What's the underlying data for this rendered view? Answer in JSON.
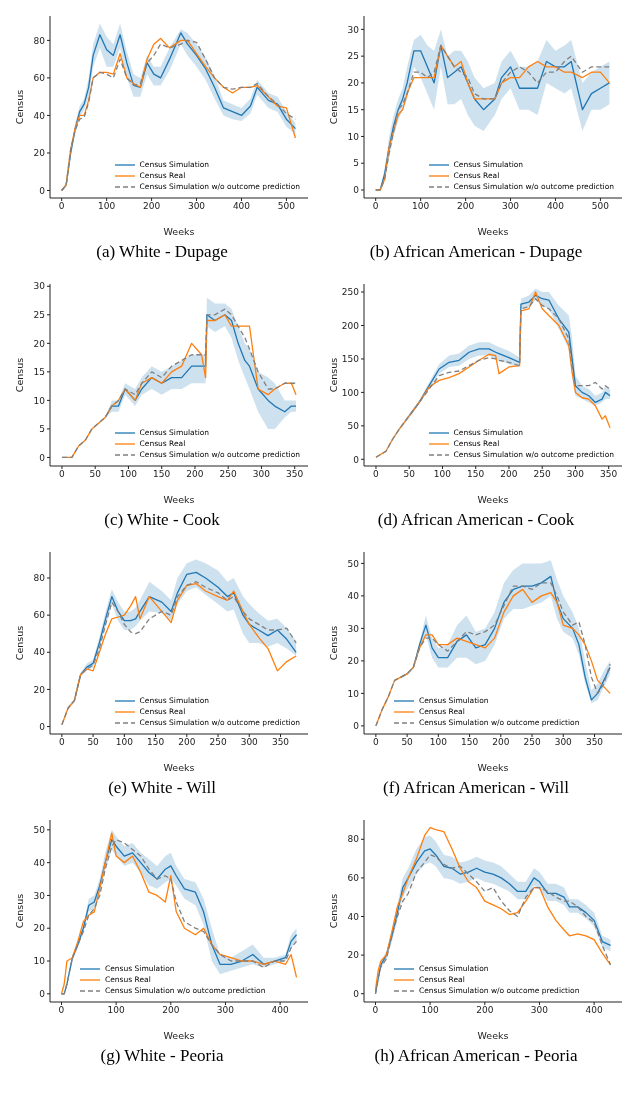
{
  "chart_data": [
    {
      "type": "line",
      "title": "(a) White - Dupage",
      "xlabel": "Weeks",
      "ylabel": "Census",
      "legend": "bottom right",
      "xlim": [
        -26,
        548
      ],
      "xticks": [
        0,
        100,
        200,
        300,
        400,
        500
      ],
      "ylim": [
        -4,
        93
      ],
      "yticks": [
        0,
        20,
        40,
        60,
        80
      ],
      "x": [
        0,
        10,
        20,
        30,
        40,
        50,
        60,
        70,
        85,
        100,
        115,
        130,
        145,
        160,
        175,
        190,
        205,
        220,
        240,
        265,
        280,
        300,
        320,
        340,
        360,
        380,
        400,
        420,
        435,
        460,
        480,
        500,
        520
      ],
      "series": [
        {
          "name": "Census Simulation",
          "color": "#1f77b4",
          "line_style": "solid",
          "values": [
            0,
            3,
            20,
            33,
            42,
            46,
            55,
            72,
            83,
            75,
            72,
            83,
            68,
            56,
            55,
            68,
            62,
            60,
            70,
            84,
            78,
            72,
            65,
            55,
            44,
            42,
            40,
            45,
            55,
            48,
            46,
            38,
            33
          ],
          "lower": [
            0,
            2,
            18,
            30,
            39,
            43,
            50,
            66,
            76,
            66,
            66,
            76,
            60,
            50,
            50,
            62,
            56,
            56,
            64,
            78,
            72,
            66,
            59,
            49,
            40,
            38,
            37,
            41,
            51,
            44,
            42,
            34,
            30
          ],
          "upper": [
            0,
            4,
            22,
            36,
            45,
            49,
            60,
            78,
            89,
            82,
            78,
            89,
            74,
            62,
            60,
            72,
            66,
            66,
            76,
            86,
            84,
            78,
            71,
            61,
            48,
            46,
            44,
            49,
            59,
            52,
            50,
            42,
            36
          ]
        },
        {
          "name": "Census Real",
          "color": "#ff7f0e",
          "line_style": "solid",
          "values": [
            0,
            3,
            22,
            33,
            40,
            40,
            48,
            60,
            63,
            63,
            62,
            73,
            60,
            57,
            55,
            70,
            78,
            81,
            76,
            80,
            80,
            73,
            66,
            60,
            55,
            52,
            55,
            55,
            56,
            50,
            45,
            44,
            28
          ]
        },
        {
          "name": "Census Simulation w/o outcome prediction",
          "color": "#808080",
          "line_style": "dashed",
          "values": [
            0,
            3,
            22,
            32,
            38,
            39,
            47,
            60,
            63,
            62,
            60,
            70,
            60,
            56,
            57,
            68,
            72,
            78,
            76,
            78,
            80,
            79,
            70,
            60,
            55,
            54,
            55,
            55,
            57,
            50,
            46,
            41,
            38
          ]
        }
      ]
    },
    {
      "type": "line",
      "title": "(b) African American - Dupage",
      "xlabel": "Weeks",
      "ylabel": "Census",
      "legend": "bottom right",
      "xlim": [
        -26,
        548
      ],
      "xticks": [
        0,
        100,
        200,
        300,
        400,
        500
      ],
      "ylim": [
        -1.5,
        32.5
      ],
      "yticks": [
        0,
        5,
        10,
        15,
        20,
        25,
        30
      ],
      "x": [
        0,
        10,
        20,
        30,
        40,
        50,
        60,
        70,
        85,
        100,
        115,
        130,
        145,
        160,
        175,
        190,
        205,
        220,
        240,
        265,
        280,
        300,
        320,
        340,
        360,
        380,
        400,
        420,
        435,
        460,
        480,
        500,
        520
      ],
      "series": [
        {
          "name": "Census Simulation",
          "color": "#1f77b4",
          "line_style": "solid",
          "values": [
            0,
            0,
            3,
            8,
            12,
            15,
            17,
            20,
            26,
            26,
            23,
            20,
            27,
            21,
            22,
            23,
            20,
            17,
            15,
            17,
            21,
            23,
            19,
            19,
            19,
            24,
            23,
            23,
            24,
            15,
            18,
            19,
            20
          ],
          "lower": [
            0,
            0,
            2,
            6,
            10,
            13,
            15,
            17,
            23,
            21,
            18,
            15,
            23,
            16,
            16,
            17,
            14,
            12,
            11,
            14,
            17,
            19,
            15,
            15,
            14,
            20,
            19,
            18,
            19,
            11,
            15,
            15,
            16
          ],
          "upper": [
            0,
            0,
            4,
            10,
            14,
            17,
            19,
            23,
            28,
            29,
            27,
            26,
            30,
            25,
            26,
            26,
            24,
            21,
            19,
            20,
            24,
            26,
            23,
            23,
            24,
            28,
            26,
            27,
            28,
            20,
            22,
            23,
            24
          ]
        },
        {
          "name": "Census Real",
          "color": "#ff7f0e",
          "line_style": "solid",
          "values": [
            0,
            0,
            2,
            8,
            11,
            14,
            15,
            18,
            21,
            21,
            21,
            21,
            27,
            25,
            23,
            24,
            20,
            17,
            17,
            17,
            20,
            21,
            21,
            23,
            24,
            23,
            23,
            22,
            22,
            21,
            22,
            22,
            20
          ]
        },
        {
          "name": "Census Simulation w/o outcome prediction",
          "color": "#808080",
          "line_style": "dashed",
          "values": [
            0,
            0,
            2,
            7,
            11,
            15,
            16,
            18,
            22,
            22,
            21,
            22,
            27,
            25,
            23,
            22,
            21,
            18,
            17,
            17,
            20,
            22,
            23,
            22,
            20,
            22,
            22,
            24,
            25,
            22,
            23,
            23,
            23
          ]
        }
      ]
    },
    {
      "type": "line",
      "title": "(c) White - Cook",
      "xlabel": "Weeks",
      "ylabel": "Census",
      "legend": "bottom right",
      "xlim": [
        -18,
        370
      ],
      "xticks": [
        0,
        50,
        100,
        150,
        200,
        250,
        300,
        350
      ],
      "ylim": [
        -1.5,
        30.4
      ],
      "yticks": [
        0,
        5,
        10,
        15,
        20,
        25,
        30
      ],
      "x": [
        0,
        15,
        25,
        35,
        45,
        55,
        65,
        75,
        85,
        95,
        110,
        120,
        135,
        150,
        165,
        180,
        195,
        210,
        216,
        218,
        230,
        245,
        255,
        265,
        275,
        282,
        295,
        310,
        320,
        335,
        345,
        352
      ],
      "series": [
        {
          "name": "Census Simulation",
          "color": "#1f77b4",
          "line_style": "solid",
          "values": [
            null,
            null,
            null,
            null,
            null,
            null,
            7,
            9,
            9,
            12,
            10,
            12,
            14,
            13,
            14,
            14,
            16,
            16,
            16,
            25,
            24,
            25,
            24,
            20,
            17,
            16,
            12,
            10,
            9,
            8,
            9,
            9
          ],
          "lower": [
            0,
            0,
            2,
            3,
            5,
            6,
            7,
            8,
            8,
            11,
            9,
            11,
            12,
            11,
            12,
            12,
            13,
            13,
            13,
            23,
            22,
            23,
            21,
            17,
            14,
            12,
            8,
            5,
            5,
            7,
            8,
            8
          ],
          "upper": [
            0,
            0,
            2,
            3,
            5,
            6,
            7,
            10,
            10,
            13,
            12,
            14,
            16,
            15,
            16,
            17,
            18,
            18,
            18,
            28,
            27,
            27,
            26,
            23,
            20,
            19,
            15,
            14,
            13,
            10,
            10,
            10
          ]
        },
        {
          "name": "Census Real",
          "color": "#ff7f0e",
          "line_style": "solid",
          "values": [
            0,
            0,
            2,
            3,
            5,
            6,
            7,
            9,
            10,
            12,
            10,
            13,
            14,
            13,
            15,
            16,
            20,
            18,
            14,
            24,
            24,
            25,
            23,
            23,
            23,
            23,
            12,
            11,
            12,
            13,
            13,
            11
          ]
        },
        {
          "name": "Census Simulation w/o outcome prediction",
          "color": "#808080",
          "line_style": "dashed",
          "values": [
            0,
            0,
            2,
            3,
            5,
            6,
            7,
            9,
            10,
            12,
            11,
            13,
            15,
            14,
            16,
            17,
            18,
            18,
            18,
            25,
            25,
            26,
            25,
            23,
            21,
            19,
            15,
            12,
            12,
            13,
            13,
            13
          ]
        }
      ]
    },
    {
      "type": "line",
      "title": "(d) African American - Cook",
      "xlabel": "Weeks",
      "ylabel": "Census",
      "legend": "bottom right",
      "xlim": [
        -18,
        370
      ],
      "xticks": [
        0,
        50,
        100,
        150,
        200,
        250,
        300,
        350
      ],
      "ylim": [
        -10,
        262
      ],
      "yticks": [
        0,
        50,
        100,
        150,
        200,
        250
      ],
      "x": [
        0,
        15,
        25,
        35,
        50,
        65,
        80,
        95,
        110,
        125,
        140,
        155,
        170,
        180,
        185,
        200,
        216,
        218,
        230,
        240,
        250,
        260,
        275,
        290,
        295,
        300,
        310,
        320,
        330,
        340,
        345,
        352
      ],
      "series": [
        {
          "name": "Census Simulation",
          "color": "#1f77b4",
          "line_style": "solid",
          "values": [
            null,
            null,
            null,
            null,
            65,
            85,
            110,
            135,
            145,
            148,
            160,
            165,
            165,
            160,
            158,
            152,
            145,
            232,
            235,
            245,
            240,
            238,
            210,
            190,
            150,
            110,
            100,
            95,
            85,
            90,
            100,
            95
          ],
          "lower": [
            3,
            11,
            28,
            43,
            62,
            82,
            105,
            128,
            138,
            140,
            150,
            155,
            155,
            150,
            148,
            142,
            138,
            225,
            228,
            238,
            230,
            225,
            195,
            165,
            125,
            95,
            90,
            85,
            80,
            85,
            90,
            90
          ],
          "upper": [
            3,
            13,
            32,
            47,
            68,
            88,
            115,
            142,
            155,
            158,
            170,
            175,
            175,
            170,
            168,
            162,
            152,
            240,
            245,
            255,
            250,
            250,
            230,
            215,
            180,
            125,
            110,
            105,
            95,
            100,
            110,
            105
          ]
        },
        {
          "name": "Census Real",
          "color": "#ff7f0e",
          "line_style": "solid",
          "values": [
            3,
            12,
            30,
            45,
            65,
            85,
            108,
            118,
            122,
            128,
            138,
            148,
            157,
            155,
            128,
            138,
            140,
            222,
            225,
            250,
            225,
            215,
            200,
            170,
            130,
            100,
            92,
            90,
            80,
            60,
            65,
            47
          ]
        },
        {
          "name": "Census Simulation w/o outcome prediction",
          "color": "#808080",
          "line_style": "dashed",
          "values": [
            3,
            12,
            30,
            45,
            65,
            85,
            105,
            125,
            130,
            132,
            140,
            148,
            152,
            150,
            148,
            145,
            140,
            225,
            228,
            240,
            230,
            225,
            210,
            180,
            140,
            110,
            110,
            110,
            115,
            105,
            110,
            105
          ]
        }
      ]
    },
    {
      "type": "line",
      "title": "(e) White - Will",
      "xlabel": "Weeks",
      "ylabel": "Census",
      "legend": "bottom right",
      "xlim": [
        -19,
        394
      ],
      "xticks": [
        0,
        50,
        100,
        150,
        200,
        250,
        300,
        350
      ],
      "ylim": [
        -4,
        94
      ],
      "yticks": [
        0,
        20,
        40,
        60,
        80
      ],
      "x": [
        0,
        10,
        20,
        30,
        40,
        50,
        60,
        70,
        80,
        90,
        100,
        110,
        118,
        125,
        140,
        160,
        175,
        185,
        200,
        215,
        230,
        250,
        265,
        275,
        290,
        300,
        315,
        330,
        345,
        360,
        375
      ],
      "series": [
        {
          "name": "Census Simulation",
          "color": "#1f77b4",
          "line_style": "solid",
          "values": [
            null,
            null,
            14,
            28,
            32,
            34,
            45,
            58,
            70,
            62,
            57,
            57,
            58,
            62,
            70,
            67,
            62,
            72,
            82,
            83,
            80,
            75,
            70,
            72,
            60,
            55,
            52,
            49,
            52,
            47,
            40
          ],
          "lower": [
            1,
            9,
            13,
            27,
            30,
            32,
            42,
            54,
            66,
            57,
            52,
            52,
            54,
            57,
            62,
            61,
            57,
            66,
            73,
            75,
            71,
            66,
            62,
            63,
            50,
            45,
            45,
            43,
            45,
            42,
            38
          ],
          "upper": [
            1,
            11,
            15,
            29,
            34,
            36,
            48,
            62,
            74,
            67,
            62,
            62,
            64,
            68,
            78,
            73,
            68,
            80,
            88,
            90,
            88,
            84,
            78,
            80,
            70,
            66,
            61,
            57,
            58,
            53,
            46
          ]
        },
        {
          "name": "Census Real",
          "color": "#ff7f0e",
          "line_style": "solid",
          "values": [
            1,
            10,
            14,
            28,
            31,
            30,
            40,
            50,
            58,
            59,
            60,
            65,
            70,
            58,
            70,
            62,
            56,
            68,
            76,
            77,
            73,
            70,
            68,
            73,
            62,
            55,
            48,
            42,
            30,
            35,
            38
          ]
        },
        {
          "name": "Census Simulation w/o outcome prediction",
          "color": "#808080",
          "line_style": "dashed",
          "values": [
            1,
            10,
            14,
            28,
            31,
            33,
            42,
            55,
            67,
            62,
            55,
            51,
            50,
            51,
            58,
            62,
            60,
            70,
            76,
            78,
            75,
            72,
            68,
            70,
            62,
            58,
            55,
            52,
            52,
            53,
            45
          ]
        }
      ]
    },
    {
      "type": "line",
      "title": "(f) African American - Will",
      "xlabel": "Weeks",
      "ylabel": "Census",
      "legend": "bottom",
      "xlim": [
        -19,
        394
      ],
      "xticks": [
        0,
        50,
        100,
        150,
        200,
        250,
        300,
        350
      ],
      "ylim": [
        -2.5,
        53.5
      ],
      "yticks": [
        0,
        10,
        20,
        30,
        40,
        50
      ],
      "x": [
        0,
        10,
        20,
        30,
        40,
        50,
        60,
        70,
        80,
        90,
        100,
        115,
        130,
        145,
        160,
        175,
        190,
        205,
        220,
        235,
        250,
        265,
        280,
        290,
        300,
        315,
        325,
        335,
        345,
        355,
        365,
        375
      ],
      "series": [
        {
          "name": "Census Simulation",
          "color": "#1f77b4",
          "line_style": "solid",
          "values": [
            null,
            null,
            null,
            null,
            15,
            16,
            18,
            25,
            31,
            24,
            21,
            21,
            26,
            28,
            24,
            25,
            30,
            38,
            42,
            43,
            43,
            44,
            46,
            38,
            33,
            30,
            25,
            15,
            8,
            10,
            14,
            18
          ],
          "lower": [
            0,
            5,
            9,
            14,
            15,
            16,
            18,
            24,
            28,
            21,
            18,
            18,
            21,
            21,
            19,
            20,
            25,
            33,
            36,
            36,
            37,
            38,
            40,
            33,
            29,
            27,
            22,
            13,
            7,
            8,
            12,
            16
          ],
          "upper": [
            0,
            5,
            9,
            14,
            15,
            16,
            18,
            26,
            34,
            27,
            24,
            25,
            31,
            34,
            29,
            30,
            35,
            44,
            48,
            50,
            50,
            50,
            51,
            45,
            40,
            35,
            30,
            20,
            11,
            13,
            17,
            20
          ]
        },
        {
          "name": "Census Real",
          "color": "#ff7f0e",
          "line_style": "solid",
          "values": [
            0,
            5,
            9,
            14,
            15,
            16,
            18,
            24,
            28,
            28,
            25,
            25,
            27,
            26,
            25,
            24,
            27,
            35,
            40,
            42,
            38,
            40,
            41,
            38,
            31,
            30,
            28,
            25,
            20,
            14,
            12,
            10
          ]
        },
        {
          "name": "Census Simulation w/o outcome prediction",
          "color": "#808080",
          "line_style": "dashed",
          "values": [
            0,
            5,
            9,
            14,
            15,
            16,
            18,
            24,
            27,
            27,
            25,
            23,
            26,
            29,
            28,
            29,
            31,
            37,
            43,
            43,
            42,
            44,
            44,
            40,
            35,
            31,
            32,
            25,
            15,
            10,
            13,
            19
          ]
        }
      ]
    },
    {
      "type": "line",
      "title": "(g) White - Peoria",
      "xlabel": "Weeks",
      "ylabel": "Census",
      "legend": "bottom",
      "xlim": [
        -21,
        451
      ],
      "xticks": [
        0,
        100,
        200,
        300,
        400
      ],
      "ylim": [
        -2.5,
        53
      ],
      "yticks": [
        0,
        10,
        20,
        30,
        40,
        50
      ],
      "x": [
        0,
        5,
        10,
        20,
        30,
        40,
        50,
        60,
        70,
        80,
        92,
        100,
        115,
        130,
        145,
        160,
        175,
        190,
        200,
        210,
        225,
        245,
        260,
        275,
        290,
        310,
        330,
        350,
        370,
        390,
        410,
        420,
        430
      ],
      "series": [
        {
          "name": "Census Simulation",
          "color": "#1f77b4",
          "line_style": "solid",
          "values": [
            0,
            0,
            3,
            11,
            15,
            20,
            27,
            28,
            33,
            40,
            47,
            45,
            42,
            43,
            40,
            37,
            35,
            38,
            39,
            36,
            32,
            31,
            25,
            15,
            9,
            9,
            10,
            12,
            9,
            10,
            11,
            16,
            18
          ],
          "lower": [
            0,
            0,
            3,
            10,
            14,
            19,
            25,
            26,
            31,
            38,
            44,
            42,
            39,
            40,
            37,
            33,
            32,
            34,
            35,
            33,
            29,
            27,
            21,
            10,
            6,
            7,
            8,
            9,
            8,
            9,
            10,
            14,
            16
          ],
          "upper": [
            0,
            0,
            3,
            12,
            16,
            21,
            29,
            30,
            35,
            43,
            50,
            48,
            45,
            46,
            43,
            41,
            39,
            42,
            43,
            39,
            35,
            34,
            29,
            20,
            12,
            11,
            13,
            15,
            11,
            11,
            12,
            18,
            20
          ]
        },
        {
          "name": "Census Real",
          "color": "#ff7f0e",
          "line_style": "solid",
          "values": [
            0,
            3,
            10,
            11,
            16,
            22,
            24,
            25,
            32,
            40,
            49,
            42,
            40,
            42,
            37,
            31,
            30,
            28,
            36,
            25,
            20,
            18,
            20,
            15,
            12,
            11,
            10,
            10,
            9,
            10,
            9,
            12,
            5
          ]
        },
        {
          "name": "Census Simulation w/o outcome prediction",
          "color": "#808080",
          "line_style": "dashed",
          "values": [
            0,
            0,
            3,
            11,
            15,
            19,
            24,
            26,
            30,
            38,
            45,
            47,
            46,
            44,
            42,
            38,
            35,
            36,
            35,
            28,
            22,
            20,
            19,
            15,
            12,
            10,
            10,
            10,
            8,
            10,
            10,
            14,
            16
          ]
        }
      ]
    },
    {
      "type": "line",
      "title": "(h) African American - Peoria",
      "xlabel": "Weeks",
      "ylabel": "Census",
      "legend": "bottom",
      "xlim": [
        -21,
        451
      ],
      "xticks": [
        0,
        100,
        200,
        300,
        400
      ],
      "ylim": [
        -4.3,
        90
      ],
      "yticks": [
        0,
        20,
        40,
        60,
        80
      ],
      "x": [
        0,
        5,
        10,
        20,
        30,
        40,
        50,
        60,
        75,
        90,
        100,
        110,
        125,
        140,
        155,
        170,
        185,
        200,
        215,
        230,
        245,
        260,
        275,
        290,
        300,
        315,
        330,
        345,
        355,
        370,
        385,
        400,
        415,
        430
      ],
      "series": [
        {
          "name": "Census Simulation",
          "color": "#1f77b4",
          "line_style": "solid",
          "values": [
            0,
            8,
            15,
            20,
            30,
            42,
            55,
            60,
            68,
            74,
            75,
            72,
            66,
            65,
            62,
            63,
            65,
            63,
            62,
            60,
            57,
            53,
            53,
            60,
            58,
            52,
            52,
            50,
            45,
            45,
            42,
            38,
            27,
            25
          ],
          "lower": [
            0,
            7,
            13,
            18,
            27,
            38,
            50,
            55,
            62,
            67,
            68,
            66,
            60,
            59,
            57,
            58,
            60,
            58,
            57,
            55,
            53,
            49,
            49,
            56,
            54,
            48,
            48,
            46,
            42,
            42,
            39,
            35,
            24,
            22
          ],
          "upper": [
            0,
            9,
            17,
            22,
            33,
            46,
            60,
            65,
            75,
            81,
            82,
            79,
            72,
            71,
            68,
            69,
            71,
            69,
            68,
            66,
            62,
            58,
            58,
            65,
            63,
            57,
            57,
            55,
            49,
            49,
            46,
            42,
            30,
            28
          ]
        },
        {
          "name": "Census Real",
          "color": "#ff7f0e",
          "line_style": "solid",
          "values": [
            2,
            12,
            17,
            20,
            32,
            45,
            52,
            60,
            70,
            82,
            86,
            85,
            84,
            75,
            65,
            58,
            55,
            48,
            46,
            44,
            41,
            42,
            48,
            55,
            55,
            45,
            38,
            33,
            30,
            31,
            30,
            28,
            21,
            15
          ]
        },
        {
          "name": "Census Simulation w/o outcome prediction",
          "color": "#808080",
          "line_style": "dashed",
          "values": [
            0,
            8,
            14,
            18,
            30,
            40,
            48,
            52,
            63,
            68,
            72,
            71,
            67,
            65,
            66,
            62,
            58,
            53,
            55,
            48,
            43,
            40,
            50,
            55,
            55,
            53,
            50,
            48,
            48,
            45,
            40,
            37,
            25,
            15
          ]
        }
      ]
    }
  ]
}
